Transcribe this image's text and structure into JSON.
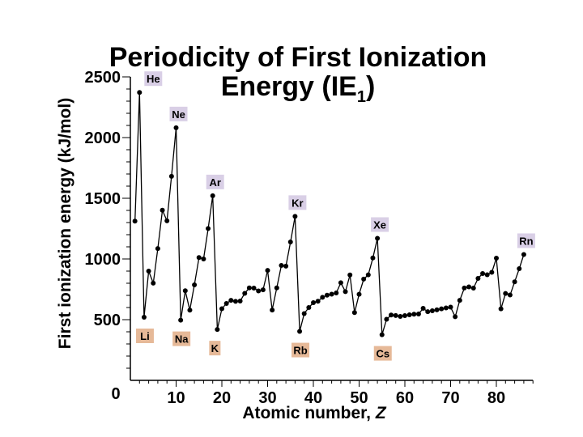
{
  "chart_data": {
    "type": "line",
    "title_line1": "Periodicity of First Ionization",
    "title_line2_main": "Energy (IE",
    "title_line2_sub": "1",
    "title_line2_end": ")",
    "xlabel": "Atomic number,",
    "xlabel_var": "Z",
    "ylabel": "First ionization energy (kJ/mol)",
    "xlim": [
      0,
      88
    ],
    "ylim": [
      0,
      2500
    ],
    "x_origin_label": "0",
    "xticks": [
      10,
      20,
      30,
      40,
      50,
      60,
      70,
      80
    ],
    "xtick_labels": [
      "10",
      "20",
      "30",
      "40",
      "50",
      "60",
      "70",
      "80"
    ],
    "yticks": [
      500,
      1000,
      1500,
      2000,
      2500
    ],
    "ytick_labels": [
      "500",
      "1000",
      "1500",
      "2000",
      "2500"
    ],
    "series": [
      {
        "name": "IE1",
        "x": [
          1,
          2,
          3,
          4,
          5,
          6,
          7,
          8,
          9,
          10,
          11,
          12,
          13,
          14,
          15,
          16,
          17,
          18,
          19,
          20,
          21,
          22,
          23,
          24,
          25,
          26,
          27,
          28,
          29,
          30,
          31,
          32,
          33,
          34,
          35,
          36,
          37,
          38,
          39,
          40,
          41,
          42,
          43,
          44,
          45,
          46,
          47,
          48,
          49,
          50,
          51,
          52,
          53,
          54,
          55,
          56,
          57,
          58,
          59,
          60,
          61,
          62,
          63,
          64,
          65,
          66,
          67,
          68,
          69,
          70,
          71,
          72,
          73,
          74,
          75,
          76,
          77,
          78,
          79,
          80,
          81,
          82,
          83,
          84,
          85,
          86
        ],
        "y": [
          1312,
          2372,
          520,
          900,
          801,
          1086,
          1402,
          1314,
          1681,
          2081,
          496,
          738,
          578,
          787,
          1012,
          1000,
          1251,
          1521,
          419,
          590,
          633,
          659,
          651,
          653,
          717,
          762,
          760,
          737,
          746,
          906,
          579,
          762,
          947,
          941,
          1140,
          1351,
          403,
          550,
          600,
          640,
          652,
          684,
          702,
          710,
          720,
          804,
          731,
          868,
          558,
          709,
          834,
          869,
          1008,
          1170,
          376,
          503,
          538,
          534,
          527,
          533,
          540,
          545,
          547,
          593,
          566,
          573,
          581,
          589,
          597,
          603,
          524,
          659,
          761,
          770,
          760,
          840,
          880,
          870,
          890,
          1007,
          589,
          716,
          703,
          812,
          920,
          1037
        ]
      }
    ],
    "labels": [
      {
        "symbol": "He",
        "z": 2,
        "kind": "noble"
      },
      {
        "symbol": "Ne",
        "z": 10,
        "kind": "noble"
      },
      {
        "symbol": "Ar",
        "z": 18,
        "kind": "noble"
      },
      {
        "symbol": "Kr",
        "z": 36,
        "kind": "noble"
      },
      {
        "symbol": "Xe",
        "z": 54,
        "kind": "noble"
      },
      {
        "symbol": "Rn",
        "z": 86,
        "kind": "noble"
      },
      {
        "symbol": "Li",
        "z": 3,
        "kind": "alkali"
      },
      {
        "symbol": "Na",
        "z": 11,
        "kind": "alkali"
      },
      {
        "symbol": "K",
        "z": 19,
        "kind": "alkali"
      },
      {
        "symbol": "Rb",
        "z": 37,
        "kind": "alkali"
      },
      {
        "symbol": "Cs",
        "z": 55,
        "kind": "alkali"
      }
    ],
    "colors": {
      "noble": "#d9cfe6",
      "alkali": "#e6b998",
      "line": "#000000"
    }
  }
}
